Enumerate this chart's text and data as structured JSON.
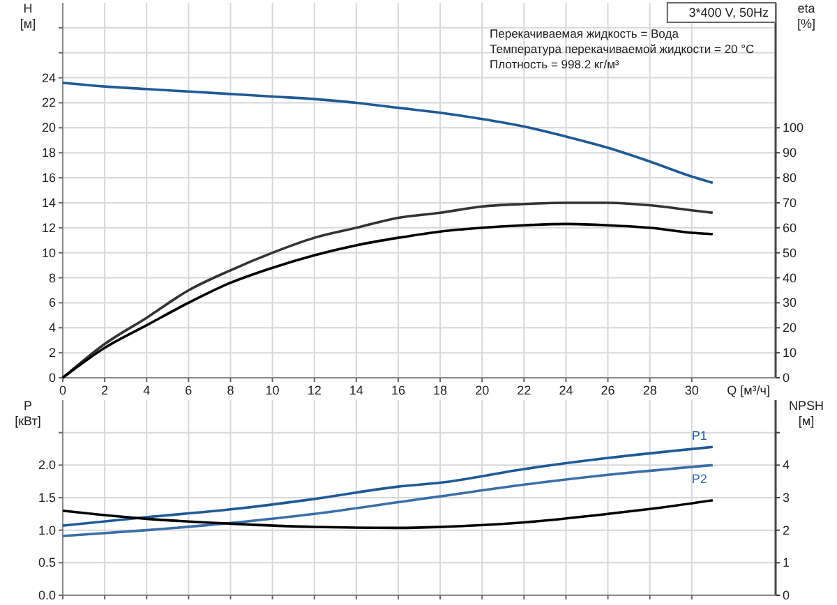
{
  "chart_data": [
    {
      "type": "line",
      "xlabel": "Q [м³/ч]",
      "ylabel": "H\n[м]",
      "y2label": "eta\n[%]",
      "annotations": [
        "3*400 V, 50Hz",
        "Перекачиваемая жидкость = Вода",
        "Температура перекачиваемой жидкости = 20 °C",
        "Плотность = 998.2 кг/м³"
      ],
      "xlim": [
        0,
        34
      ],
      "xticks": [
        0,
        2,
        4,
        6,
        8,
        10,
        12,
        14,
        16,
        18,
        20,
        22,
        24,
        26,
        28,
        30
      ],
      "ylim": [
        0,
        30
      ],
      "yticks": [
        0,
        2,
        4,
        6,
        8,
        10,
        12,
        14,
        16,
        18,
        20,
        22,
        24,
        {
          "value": 26,
          "label": null
        },
        {
          "value": 28,
          "label": null
        }
      ],
      "y2lim": [
        0,
        150
      ],
      "y2ticks": [
        0,
        10,
        20,
        30,
        40,
        50,
        60,
        70,
        80,
        90,
        100
      ],
      "grid": true,
      "series": [
        {
          "color": "#1f5a96",
          "x": [
            0,
            2,
            4,
            6,
            8,
            10,
            12,
            14,
            16,
            18,
            20,
            22,
            24,
            26,
            28,
            30,
            31
          ],
          "values": [
            23.6,
            23.3,
            23.1,
            22.9,
            22.7,
            22.5,
            22.3,
            22.0,
            21.6,
            21.2,
            20.7,
            20.1,
            19.3,
            18.4,
            17.3,
            16.1,
            15.6
          ]
        },
        {
          "color": "#333333",
          "axis": "y2",
          "x": [
            0,
            2,
            4,
            6,
            8,
            10,
            12,
            14,
            16,
            18,
            20,
            22,
            24,
            26,
            28,
            30,
            31
          ],
          "values": [
            0,
            13.5,
            24,
            35,
            43,
            50,
            56,
            60,
            64,
            66,
            68.5,
            69.5,
            70,
            70,
            69,
            67,
            66
          ]
        },
        {
          "color": "#000000",
          "axis": "y2",
          "x": [
            0,
            2,
            4,
            6,
            8,
            10,
            12,
            14,
            16,
            18,
            20,
            22,
            24,
            26,
            28,
            30,
            31
          ],
          "values": [
            0,
            12,
            21,
            30,
            38,
            44,
            49,
            53,
            56,
            58.5,
            60,
            61,
            61.5,
            61,
            60,
            58,
            57.5
          ]
        }
      ]
    },
    {
      "type": "line",
      "ylabel": "P\n[кВт]",
      "y2label": "NPSH\n[м]",
      "xlim": [
        0,
        34
      ],
      "xticks": [
        0,
        2,
        4,
        6,
        8,
        10,
        12,
        14,
        16,
        18,
        20,
        22,
        24,
        26,
        28,
        30
      ],
      "ylim": [
        0,
        3
      ],
      "yticks": [
        {
          "value": 0,
          "label": "0.0"
        },
        0.5,
        {
          "value": 1,
          "label": "1.0"
        },
        1.5,
        {
          "value": 2,
          "label": "2.0"
        },
        {
          "value": 2.5,
          "label": null
        }
      ],
      "y2lim": [
        0,
        6
      ],
      "y2ticks": [
        0,
        1,
        2,
        3,
        4,
        {
          "value": 5,
          "label": null
        }
      ],
      "grid": true,
      "tick_labels": "y",
      "series": [
        {
          "name": "P1",
          "color": "#1f5a96",
          "x": [
            0,
            4,
            8,
            12,
            16,
            18,
            22,
            26,
            31
          ],
          "values": [
            1.07,
            1.2,
            1.32,
            1.48,
            1.67,
            1.73,
            1.94,
            2.11,
            2.28
          ]
        },
        {
          "name": "P2",
          "color": "#3a6fa8",
          "x": [
            0,
            4,
            8,
            12,
            16,
            18,
            22,
            26,
            31
          ],
          "values": [
            0.91,
            1.0,
            1.11,
            1.25,
            1.43,
            1.52,
            1.7,
            1.85,
            2.0
          ]
        },
        {
          "color": "#000000",
          "axis": "y2",
          "x": [
            0,
            4,
            8,
            12,
            16,
            18,
            22,
            26,
            28,
            31
          ],
          "values": [
            2.6,
            2.35,
            2.2,
            2.1,
            2.07,
            2.1,
            2.24,
            2.5,
            2.65,
            2.92
          ]
        }
      ]
    }
  ]
}
